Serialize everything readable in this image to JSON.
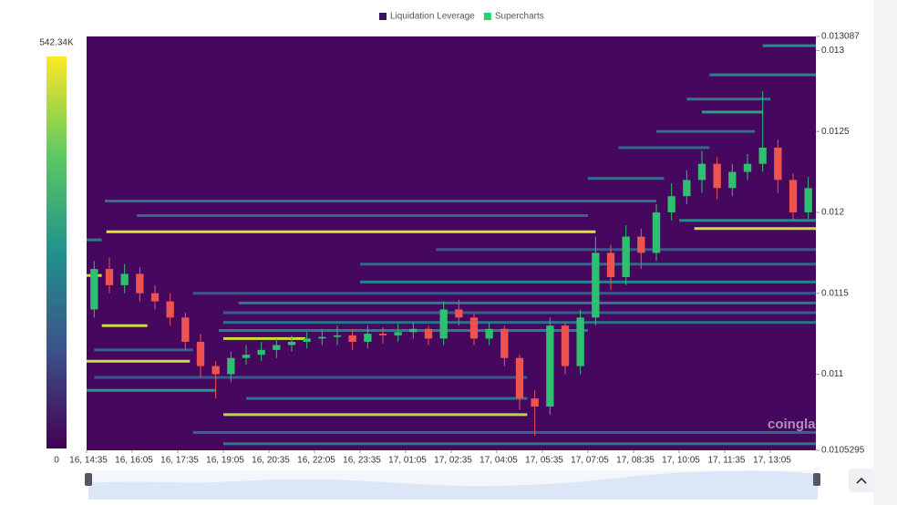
{
  "chart_data": {
    "type": "liquidation-heatmap",
    "legend": [
      {
        "name": "Liquidation Leverage",
        "color": "#3c0f63"
      },
      {
        "name": "Supercharts",
        "color": "#2ecc71"
      }
    ],
    "watermark": "coinglass",
    "background": "#45085e",
    "up_color": "#2fbf71",
    "down_color": "#ef5350",
    "colorbar_ticks": [
      {
        "value": 542340,
        "label": "542.34K"
      },
      0
    ],
    "colorbar_lim": [
      0,
      542340
    ],
    "ylim": [
      0.0105295,
      0.013087
    ],
    "yticks": [
      0.013087,
      0.013,
      0.0125,
      0.012,
      0.0115,
      0.011,
      0.0105295
    ],
    "xlim": [
      0,
      48
    ],
    "xticks": [
      {
        "value": 0,
        "label": "16, 14:35"
      },
      {
        "value": 3,
        "label": "16, 16:05"
      },
      {
        "value": 6,
        "label": "16, 17:35"
      },
      {
        "value": 9,
        "label": "16, 19:05"
      },
      {
        "value": 12,
        "label": "16, 20:35"
      },
      {
        "value": 15,
        "label": "16, 22:05"
      },
      {
        "value": 18,
        "label": "16, 23:35"
      },
      {
        "value": 21,
        "label": "17, 01:05"
      },
      {
        "value": 24,
        "label": "17, 02:35"
      },
      {
        "value": 27,
        "label": "17, 04:05"
      },
      {
        "value": 30,
        "label": "17, 05:35"
      },
      {
        "value": 33,
        "label": "17, 07:05"
      },
      {
        "value": 36,
        "label": "17, 08:35"
      },
      {
        "value": 39,
        "label": "17, 10:05"
      },
      {
        "value": 42,
        "label": "17, 11:35"
      },
      {
        "value": 45,
        "label": "17, 13:05"
      }
    ],
    "levels": [
      {
        "price": 0.01303,
        "x0": 44.5,
        "x1": 48,
        "value": 260000
      },
      {
        "price": 0.01285,
        "x0": 41,
        "x1": 48,
        "value": 240000
      },
      {
        "price": 0.0127,
        "x0": 39.5,
        "x1": 45,
        "value": 220000
      },
      {
        "price": 0.01262,
        "x0": 40.5,
        "x1": 44.5,
        "value": 300000
      },
      {
        "price": 0.0125,
        "x0": 37.5,
        "x1": 44,
        "value": 200000
      },
      {
        "price": 0.0124,
        "x0": 35,
        "x1": 41,
        "value": 180000
      },
      {
        "price": 0.01221,
        "x0": 33,
        "x1": 38,
        "value": 200000
      },
      {
        "price": 0.01207,
        "x0": 1.2,
        "x1": 37.5,
        "value": 200000
      },
      {
        "price": 0.01198,
        "x0": 3.3,
        "x1": 33,
        "value": 180000
      },
      {
        "price": 0.01195,
        "x0": 39,
        "x1": 48,
        "value": 260000
      },
      {
        "price": 0.0119,
        "x0": 40,
        "x1": 48,
        "value": 500000
      },
      {
        "price": 0.01188,
        "x0": 1.3,
        "x1": 33.5,
        "value": 520000
      },
      {
        "price": 0.01183,
        "x0": 0,
        "x1": 1,
        "value": 230000
      },
      {
        "price": 0.01177,
        "x0": 23,
        "x1": 48,
        "value": 150000
      },
      {
        "price": 0.01168,
        "x0": 18,
        "x1": 48,
        "value": 180000
      },
      {
        "price": 0.01161,
        "x0": 0,
        "x1": 1,
        "value": 500000
      },
      {
        "price": 0.01157,
        "x0": 18,
        "x1": 48,
        "value": 250000
      },
      {
        "price": 0.0115,
        "x0": 7,
        "x1": 48,
        "value": 150000
      },
      {
        "price": 0.01144,
        "x0": 10,
        "x1": 48,
        "value": 220000
      },
      {
        "price": 0.01138,
        "x0": 9,
        "x1": 48,
        "value": 160000
      },
      {
        "price": 0.0113,
        "x0": 1,
        "x1": 4,
        "value": 500000
      },
      {
        "price": 0.01132,
        "x0": 9,
        "x1": 48,
        "value": 200000
      },
      {
        "price": 0.01127,
        "x0": 8.7,
        "x1": 33,
        "value": 230000
      },
      {
        "price": 0.01122,
        "x0": 9,
        "x1": 14.4,
        "value": 500000
      },
      {
        "price": 0.01115,
        "x0": 0.5,
        "x1": 7,
        "value": 170000
      },
      {
        "price": 0.01108,
        "x0": 0,
        "x1": 6.8,
        "value": 500000
      },
      {
        "price": 0.01098,
        "x0": 0.5,
        "x1": 29,
        "value": 150000
      },
      {
        "price": 0.0109,
        "x0": 0,
        "x1": 8.5,
        "value": 280000
      },
      {
        "price": 0.01085,
        "x0": 10.5,
        "x1": 29,
        "value": 200000
      },
      {
        "price": 0.01075,
        "x0": 9,
        "x1": 29,
        "value": 480000
      },
      {
        "price": 0.01064,
        "x0": 7,
        "x1": 48,
        "value": 180000
      },
      {
        "price": 0.01057,
        "x0": 9,
        "x1": 48,
        "value": 220000
      }
    ],
    "open": [
      0.0114,
      0.01165,
      0.01155,
      0.01162,
      0.0115,
      0.01145,
      0.01135,
      0.0112,
      0.01105,
      0.011,
      0.0111,
      0.01112,
      0.01115,
      0.01118,
      0.0112,
      0.01122,
      0.01123,
      0.01124,
      0.0112,
      0.01125,
      0.01124,
      0.01126,
      0.01128,
      0.01122,
      0.0114,
      0.01135,
      0.01122,
      0.01128,
      0.0111,
      0.01085,
      0.0108,
      0.0113,
      0.01105,
      0.01135,
      0.01175,
      0.0116,
      0.01185,
      0.01175,
      0.012,
      0.0121,
      0.0122,
      0.0123,
      0.01215,
      0.01225,
      0.0123,
      0.0124,
      0.0122,
      0.012
    ],
    "close": [
      0.01165,
      0.01155,
      0.01162,
      0.0115,
      0.01145,
      0.01135,
      0.0112,
      0.01105,
      0.011,
      0.0111,
      0.01112,
      0.01115,
      0.01118,
      0.0112,
      0.01122,
      0.01123,
      0.01124,
      0.0112,
      0.01125,
      0.01124,
      0.01126,
      0.01128,
      0.01122,
      0.0114,
      0.01135,
      0.01122,
      0.01128,
      0.0111,
      0.01085,
      0.0108,
      0.0113,
      0.01105,
      0.01135,
      0.01175,
      0.0116,
      0.01185,
      0.01175,
      0.012,
      0.0121,
      0.0122,
      0.0123,
      0.01215,
      0.01225,
      0.0123,
      0.0124,
      0.0122,
      0.012,
      0.01215
    ],
    "high": [
      0.0117,
      0.01172,
      0.01168,
      0.01166,
      0.01155,
      0.0115,
      0.01138,
      0.01125,
      0.01108,
      0.01114,
      0.01118,
      0.0112,
      0.01122,
      0.01124,
      0.01126,
      0.01128,
      0.0113,
      0.01128,
      0.0113,
      0.01129,
      0.01131,
      0.01132,
      0.0113,
      0.01145,
      0.01146,
      0.01138,
      0.01132,
      0.0113,
      0.01112,
      0.0109,
      0.01135,
      0.01132,
      0.0114,
      0.01185,
      0.0118,
      0.01192,
      0.0119,
      0.01205,
      0.01218,
      0.01226,
      0.01238,
      0.01234,
      0.0123,
      0.01236,
      0.01275,
      0.01245,
      0.01224,
      0.01222
    ],
    "low": [
      0.01135,
      0.0115,
      0.0115,
      0.01145,
      0.0114,
      0.0113,
      0.01115,
      0.01098,
      0.01085,
      0.01095,
      0.01106,
      0.01108,
      0.0111,
      0.01114,
      0.01116,
      0.01118,
      0.01118,
      0.01115,
      0.01116,
      0.01119,
      0.0112,
      0.01122,
      0.01118,
      0.01118,
      0.0113,
      0.01118,
      0.01118,
      0.01105,
      0.01078,
      0.01062,
      0.01075,
      0.011,
      0.011,
      0.0113,
      0.01152,
      0.01155,
      0.01165,
      0.0117,
      0.01195,
      0.01205,
      0.01212,
      0.01208,
      0.0121,
      0.0122,
      0.01225,
      0.01212,
      0.01195,
      0.01196
    ]
  }
}
